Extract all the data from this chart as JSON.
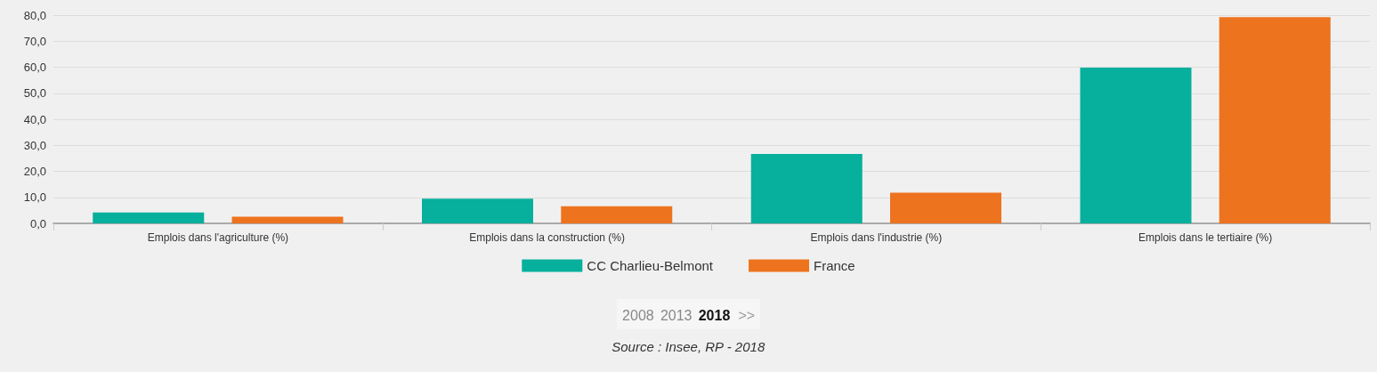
{
  "chart_data": {
    "type": "bar",
    "categories": [
      "Emplois dans l'agriculture (%)",
      "Emplois dans la construction (%)",
      "Emplois dans l'industrie (%)",
      "Emplois dans le tertiaire (%)"
    ],
    "series": [
      {
        "name": "CC Charlieu-Belmont",
        "color": "#06b09c",
        "values": [
          4.2,
          9.5,
          26.7,
          59.8
        ]
      },
      {
        "name": "France",
        "color": "#ee731f",
        "values": [
          2.6,
          6.6,
          11.8,
          79.2
        ]
      }
    ],
    "ylim": [
      0,
      80
    ],
    "yticks": [
      {
        "value": 0,
        "label": "0,0"
      },
      {
        "value": 10,
        "label": "10,0"
      },
      {
        "value": 20,
        "label": "20,0"
      },
      {
        "value": 30,
        "label": "30,0"
      },
      {
        "value": 40,
        "label": "40,0"
      },
      {
        "value": 50,
        "label": "50,0"
      },
      {
        "value": 60,
        "label": "60,0"
      },
      {
        "value": 70,
        "label": "70,0"
      },
      {
        "value": 80,
        "label": "80,0"
      }
    ],
    "grid": "y",
    "legend": "bottom",
    "annotations": [
      "2008",
      "2013",
      "2018",
      ">>",
      "Source : Insee, RP - 2018"
    ]
  }
}
